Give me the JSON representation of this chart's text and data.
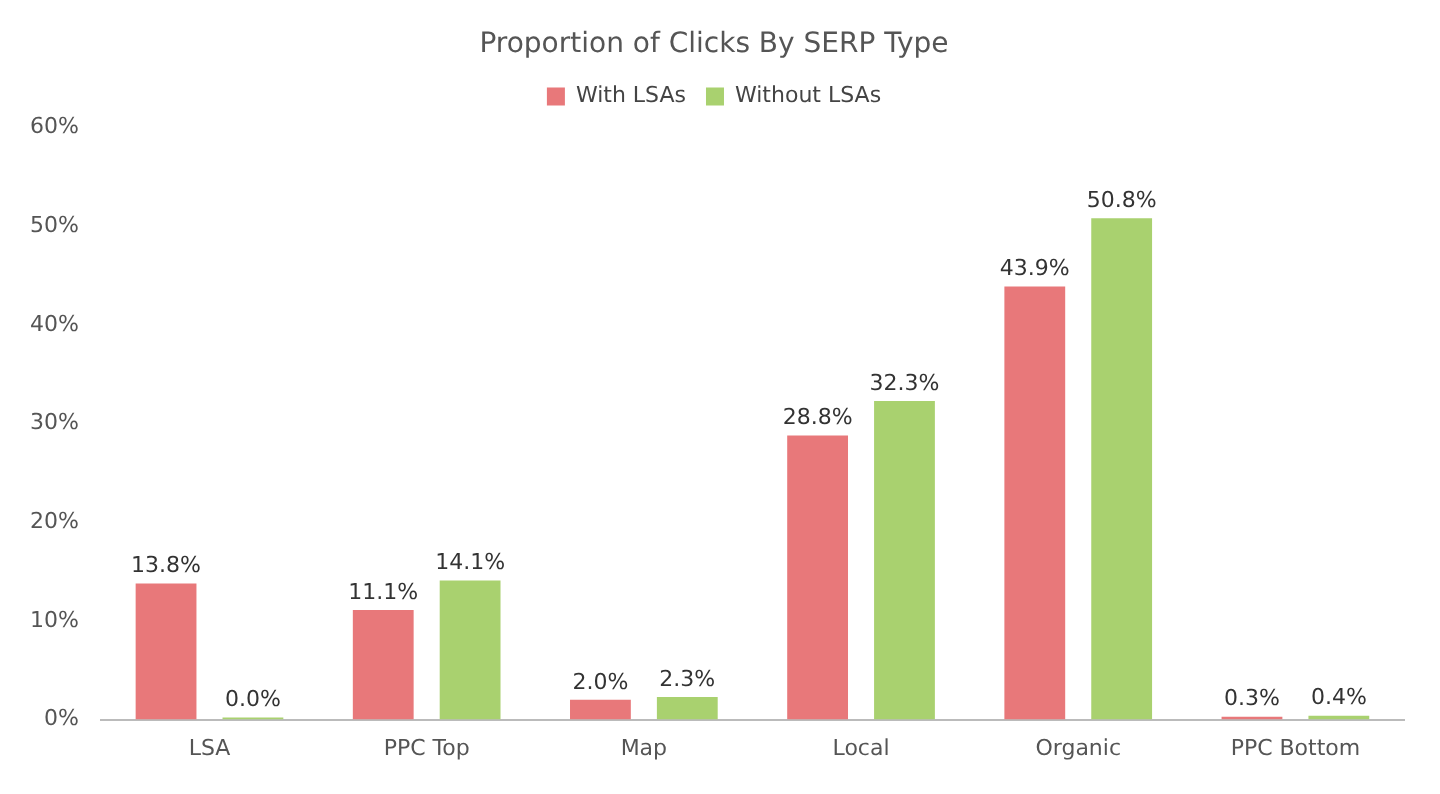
{
  "chart_data": {
    "type": "bar",
    "title": "Proportion of Clicks By SERP Type",
    "categories": [
      "LSA",
      "PPC Top",
      "Map",
      "Local",
      "Organic",
      "PPC Bottom"
    ],
    "series": [
      {
        "name": "With LSAs",
        "color": "#e8787a",
        "values": [
          13.8,
          11.1,
          2.0,
          28.8,
          43.9,
          0.3
        ],
        "value_labels": [
          "13.8%",
          "11.1%",
          "2.0%",
          "28.8%",
          "43.9%",
          "0.3%"
        ]
      },
      {
        "name": "Without LSAs",
        "color": "#a9d16f",
        "values": [
          0.0,
          14.1,
          2.3,
          32.3,
          50.8,
          0.4
        ],
        "value_labels": [
          "0.0%",
          "14.1%",
          "2.3%",
          "32.3%",
          "50.8%",
          "0.4%"
        ]
      }
    ],
    "ylim": [
      0,
      60
    ],
    "yticks": [
      {
        "value": 0,
        "label": "0%"
      },
      {
        "value": 10,
        "label": "10%"
      },
      {
        "value": 20,
        "label": "20%"
      },
      {
        "value": 30,
        "label": "30%"
      },
      {
        "value": 40,
        "label": "40%"
      },
      {
        "value": 50,
        "label": "50%"
      },
      {
        "value": 60,
        "label": "60%"
      }
    ],
    "grid": false,
    "legend": "top"
  }
}
